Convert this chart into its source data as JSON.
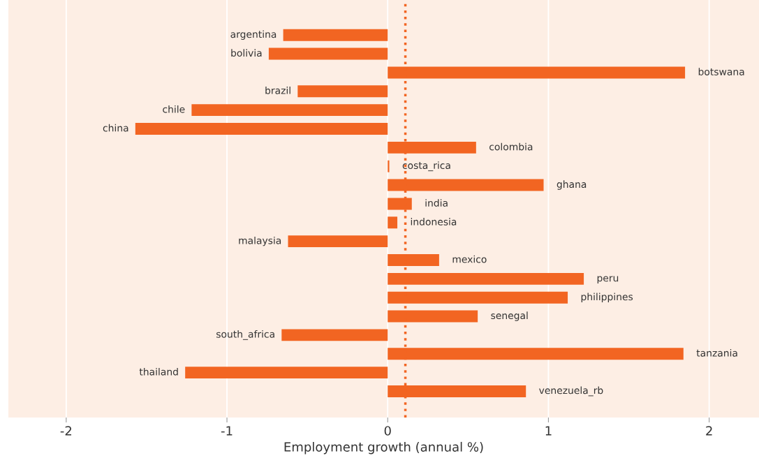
{
  "chart_data": {
    "type": "bar",
    "orientation": "horizontal",
    "xlabel": "Employment growth (annual %)",
    "categories": [
      "argentina",
      "bolivia",
      "botswana",
      "brazil",
      "chile",
      "china",
      "colombia",
      "costa_rica",
      "ghana",
      "india",
      "indonesia",
      "malaysia",
      "mexico",
      "peru",
      "philippines",
      "senegal",
      "south_africa",
      "tanzania",
      "thailand",
      "venezuela_rb"
    ],
    "values": [
      -0.65,
      -0.74,
      1.85,
      -0.56,
      -1.22,
      -1.57,
      0.55,
      0.01,
      0.97,
      0.15,
      0.06,
      -0.62,
      0.32,
      1.22,
      1.12,
      0.56,
      -0.66,
      1.84,
      -1.26,
      0.86
    ],
    "color": "#f26522",
    "xlim": [
      -2.36,
      2.31
    ],
    "xticks": [
      -2,
      -1,
      0,
      1,
      2
    ],
    "grid": "x",
    "tick_labels": "x",
    "ref_lines": [
      {
        "axis": "x",
        "value": 0.11,
        "color": "#f26522",
        "line_style": "dotted"
      }
    ]
  }
}
